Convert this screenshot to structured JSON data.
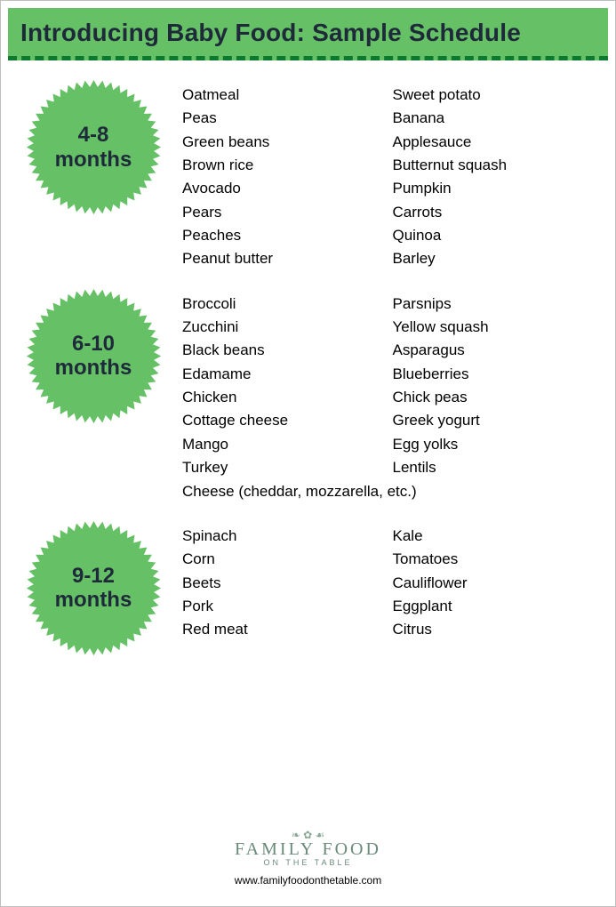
{
  "title": "Introducing Baby Food: Sample Schedule",
  "colors": {
    "title_bg": "#66c166",
    "title_border": "#0b7a2f",
    "title_text": "#1e2a3a",
    "badge_fill": "#66c166",
    "badge_text": "#1e2a3a",
    "body_text": "#000000",
    "logo_text": "#6a8a7a",
    "page_bg": "#ffffff"
  },
  "sections": [
    {
      "badge_line1": "4-8",
      "badge_line2": "months",
      "col1": [
        "Oatmeal",
        "Peas",
        "Green beans",
        "Brown rice",
        "Avocado",
        "Pears",
        "Peaches",
        "Peanut butter"
      ],
      "col2": [
        "Sweet potato",
        "Banana",
        "Applesauce",
        "Butternut squash",
        "Pumpkin",
        "Carrots",
        "Quinoa",
        "Barley"
      ],
      "full_rows": []
    },
    {
      "badge_line1": "6-10",
      "badge_line2": "months",
      "col1": [
        "Broccoli",
        "Zucchini",
        "Black beans",
        "Edamame",
        "Chicken",
        "Cottage cheese",
        "Mango",
        "Turkey"
      ],
      "col2": [
        "Parsnips",
        "Yellow squash",
        "Asparagus",
        "Blueberries",
        "Chick peas",
        "Greek yogurt",
        "Egg yolks",
        "Lentils"
      ],
      "full_rows": [
        "Cheese (cheddar, mozzarella, etc.)"
      ]
    },
    {
      "badge_line1": "9-12",
      "badge_line2": "months",
      "col1": [
        "Spinach",
        "Corn",
        "Beets",
        "Pork",
        "Red meat"
      ],
      "col2": [
        "Kale",
        "Tomatoes",
        "Cauliflower",
        "Eggplant",
        "Citrus"
      ],
      "full_rows": []
    }
  ],
  "footer": {
    "logo_main": "FAMILY FOOD",
    "logo_sub": "ON THE TABLE",
    "url": "www.familyfoodonthetable.com"
  }
}
